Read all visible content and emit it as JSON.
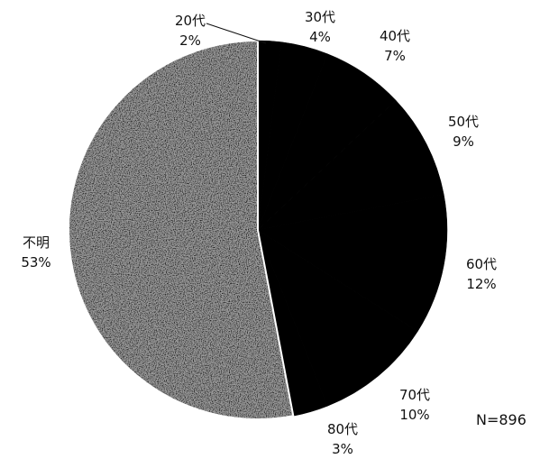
{
  "chart_data": {
    "type": "pie",
    "slices": [
      {
        "label": "20代",
        "value": 2,
        "pct_label": "2%",
        "fill": "#000000"
      },
      {
        "label": "30代",
        "value": 4,
        "pct_label": "4%",
        "fill": "#000000"
      },
      {
        "label": "40代",
        "value": 7,
        "pct_label": "7%",
        "fill": "#000000"
      },
      {
        "label": "50代",
        "value": 9,
        "pct_label": "9%",
        "fill": "#000000"
      },
      {
        "label": "60代",
        "value": 12,
        "pct_label": "12%",
        "fill": "#000000"
      },
      {
        "label": "70代",
        "value": 10,
        "pct_label": "10%",
        "fill": "#000000"
      },
      {
        "label": "80代",
        "value": 3,
        "pct_label": "3%",
        "fill": "#000000"
      },
      {
        "label": "不明",
        "value": 53,
        "pct_label": "53%",
        "fill": "speckled-grey"
      }
    ],
    "note": "N=896"
  }
}
